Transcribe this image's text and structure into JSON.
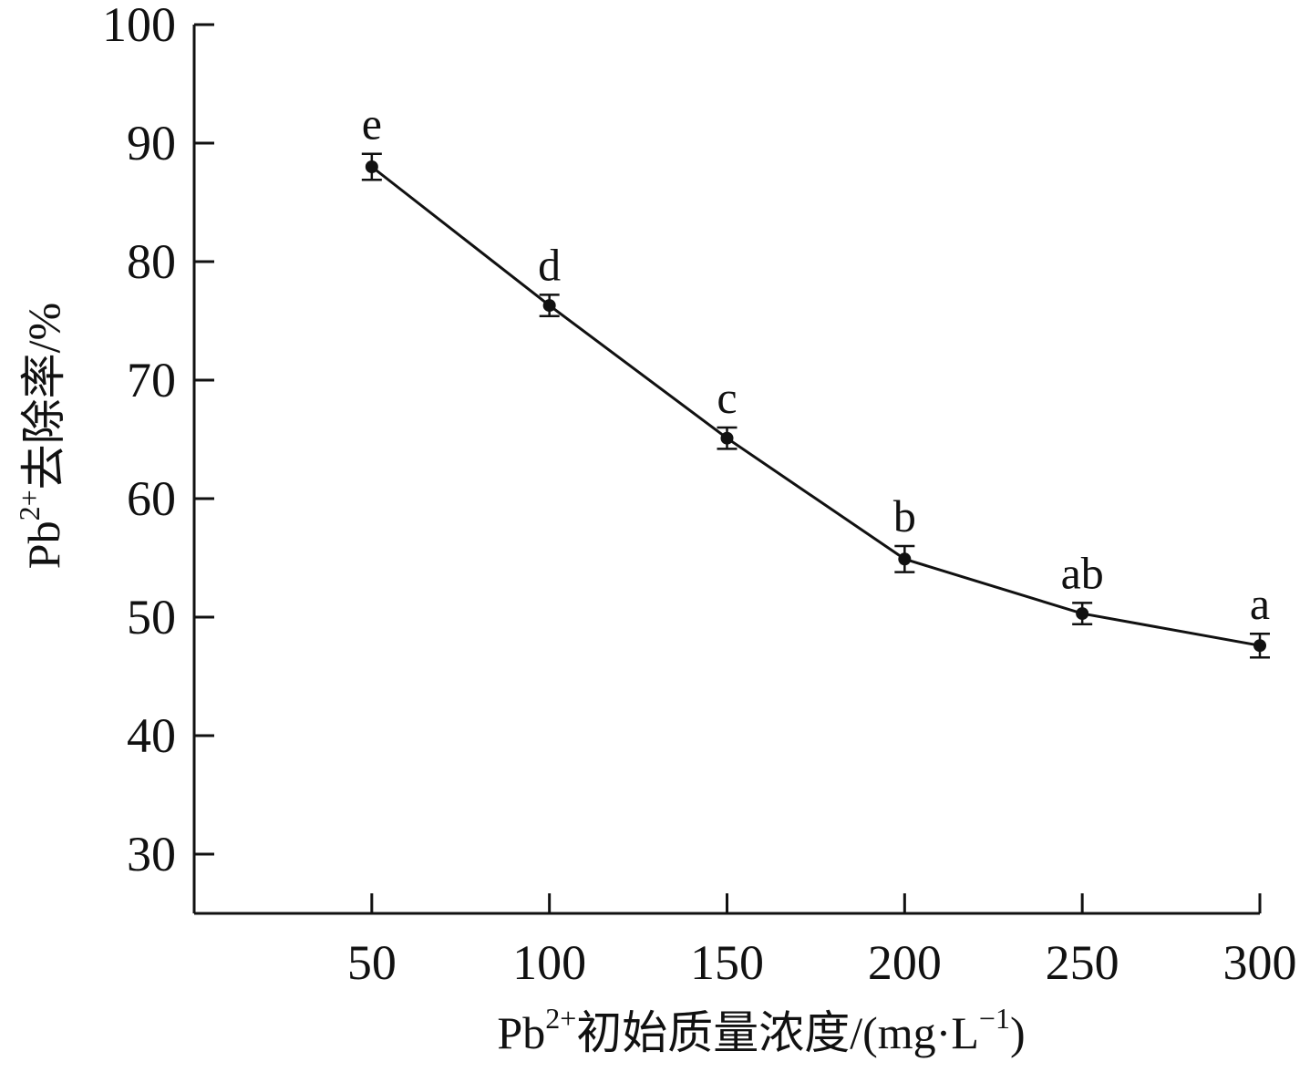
{
  "chart_data": {
    "type": "line",
    "title": "",
    "xlabel": {
      "base": "Pb",
      "sup": "2+",
      "rest": "初始质量浓度/(mg·L",
      "sup2": "−1",
      "end": ")"
    },
    "ylabel": {
      "base": "Pb",
      "sup": "2+",
      "rest": "去除率/%"
    },
    "xlim": [
      0,
      300
    ],
    "ylim": [
      25,
      100
    ],
    "xticks": [
      50,
      100,
      150,
      200,
      250,
      300
    ],
    "xtick_labels": [
      "50",
      "100",
      "150",
      "200",
      "250",
      "300"
    ],
    "yticks": [
      30,
      40,
      50,
      60,
      70,
      80,
      90,
      100
    ],
    "ytick_labels": [
      "30",
      "40",
      "50",
      "60",
      "70",
      "80",
      "90",
      "100"
    ],
    "grid": false,
    "series": [
      {
        "x": [
          50,
          100,
          150,
          200,
          250,
          300
        ],
        "y": [
          88.0,
          76.3,
          65.1,
          54.9,
          50.3,
          47.6
        ],
        "error": [
          1.1,
          0.9,
          0.9,
          1.1,
          0.9,
          1.0
        ],
        "labels": [
          "e",
          "d",
          "c",
          "b",
          "ab",
          "a"
        ]
      }
    ]
  }
}
